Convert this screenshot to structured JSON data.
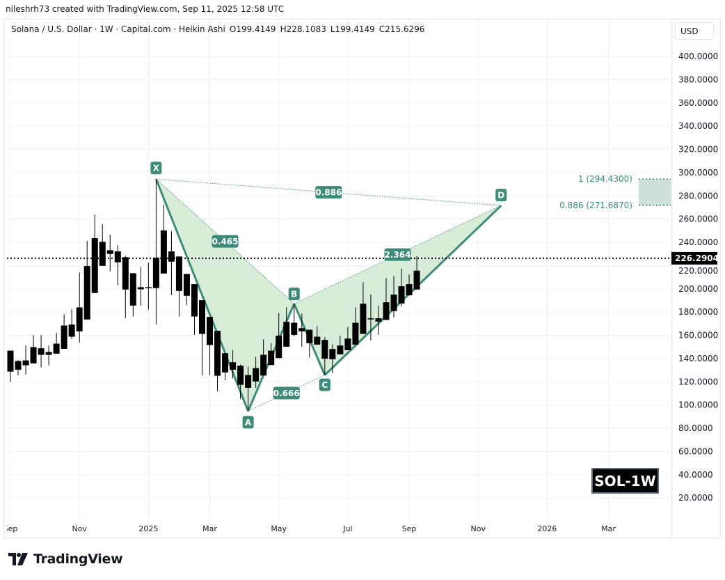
{
  "credit": "nileshrh73 created with TradingView.com, Sep 11, 2025 12:58 UTC",
  "legend": {
    "symbol": "Solana / U.S. Dollar · 1W · Capital.com · Heikin Ashi",
    "open": "O199.4149",
    "high": "H228.1083",
    "low": "L199.4149",
    "close": "C215.6296"
  },
  "currency_button": "USD",
  "watermark_label": "SOL-1W",
  "brand": "TradingView",
  "colors": {
    "pattern_line": "#3d8a78",
    "pattern_fill": "#d6ecd6",
    "candle": "#000000",
    "prz_fill": "#cde0dc",
    "label_bg": "#3d8a78"
  },
  "chart_data": {
    "type": "candlestick",
    "style": "Heikin Ashi",
    "ylim": [
      0,
      420
    ],
    "y_ticks": [
      "400.0000",
      "380.0000",
      "360.0000",
      "340.0000",
      "320.0000",
      "300.0000",
      "280.0000",
      "260.0000",
      "240.0000",
      "220.0000",
      "200.0000",
      "180.0000",
      "160.0000",
      "140.0000",
      "120.0000",
      "100.0000",
      "80.0000",
      "60.0000",
      "40.0000",
      "20.0000"
    ],
    "x_ticks": [
      {
        "label": "Sep",
        "date": "2024-09-02"
      },
      {
        "label": "Nov",
        "date": "2024-11-04"
      },
      {
        "label": "2025",
        "date": "2025-01-06"
      },
      {
        "label": "Mar",
        "date": "2025-03-03"
      },
      {
        "label": "May",
        "date": "2025-05-05"
      },
      {
        "label": "Jul",
        "date": "2025-07-07"
      },
      {
        "label": "Sep",
        "date": "2025-09-01"
      },
      {
        "label": "Nov",
        "date": "2025-11-03"
      },
      {
        "label": "2026",
        "date": "2026-01-05"
      },
      {
        "label": "Mar",
        "date": "2026-03-02"
      }
    ],
    "grid": true,
    "current_price": {
      "value": 226.2904,
      "label": "226.2904"
    },
    "candles_columns": [
      "date",
      "open",
      "high",
      "low",
      "close"
    ],
    "candles": [
      [
        "2024-09-02",
        146.8,
        146.8,
        119.8,
        128.8
      ],
      [
        "2024-09-09",
        130.4,
        138.8,
        125.8,
        137.8
      ],
      [
        "2024-09-16",
        134.2,
        151.2,
        126.4,
        138.4
      ],
      [
        "2024-09-23",
        135.8,
        160.2,
        135.8,
        149.8
      ],
      [
        "2024-09-30",
        143.2,
        160.2,
        132.4,
        148.8
      ],
      [
        "2024-10-07",
        143.2,
        151.2,
        134.2,
        145.6
      ],
      [
        "2024-10-14",
        144.2,
        162.2,
        144.2,
        152.8
      ],
      [
        "2024-10-21",
        148.4,
        178.2,
        148.4,
        168.4
      ],
      [
        "2024-10-28",
        158.8,
        182.4,
        156.8,
        169.2
      ],
      [
        "2024-11-04",
        163.4,
        214.2,
        153.8,
        184.0
      ],
      [
        "2024-11-11",
        173.6,
        241.2,
        173.6,
        219.6
      ],
      [
        "2024-11-18",
        196.4,
        264.0,
        196.4,
        243.6
      ],
      [
        "2024-11-25",
        219.8,
        255.6,
        219.8,
        240.4
      ],
      [
        "2024-12-02",
        233.2,
        246.6,
        215.0,
        230.0
      ],
      [
        "2024-12-09",
        232.2,
        237.6,
        203.0,
        222.8
      ],
      [
        "2024-12-16",
        227.2,
        228.4,
        174.8,
        199.4
      ],
      [
        "2024-12-23",
        213.4,
        213.4,
        176.2,
        185.6
      ],
      [
        "2024-12-30",
        199.6,
        218.8,
        185.6,
        201.4
      ],
      [
        "2025-01-06",
        201.0,
        222.6,
        182.0,
        201.4
      ],
      [
        "2025-01-13",
        200.6,
        294.4,
        169.4,
        226.8
      ],
      [
        "2025-01-20",
        213.2,
        272.4,
        213.2,
        250.2
      ],
      [
        "2025-01-27",
        232.2,
        249.8,
        194.6,
        223.4
      ],
      [
        "2025-02-03",
        227.8,
        227.8,
        176.2,
        198.2
      ],
      [
        "2025-02-10",
        212.8,
        212.8,
        186.2,
        194.0
      ],
      [
        "2025-02-17",
        204.0,
        204.0,
        160.4,
        176.2
      ],
      [
        "2025-02-24",
        190.2,
        190.2,
        125.4,
        161.2
      ],
      [
        "2025-03-03",
        175.8,
        175.8,
        125.8,
        151.6
      ],
      [
        "2025-03-10",
        163.8,
        163.8,
        112.0,
        125.2
      ],
      [
        "2025-03-17",
        144.6,
        144.6,
        121.4,
        128.0
      ],
      [
        "2025-03-24",
        136.8,
        147.2,
        123.0,
        130.4
      ],
      [
        "2025-03-31",
        133.8,
        134.8,
        105.2,
        117.4
      ],
      [
        "2025-04-07",
        125.8,
        133.2,
        94.8,
        114.8
      ],
      [
        "2025-04-14",
        120.2,
        141.4,
        114.8,
        131.8
      ],
      [
        "2025-04-21",
        125.4,
        156.6,
        125.4,
        143.2
      ],
      [
        "2025-04-28",
        134.4,
        153.4,
        134.4,
        146.8
      ],
      [
        "2025-05-05",
        140.4,
        179.2,
        140.4,
        159.6
      ],
      [
        "2025-05-12",
        150.2,
        184.2,
        150.2,
        171.6
      ],
      [
        "2025-05-19",
        170.8,
        187.2,
        159.2,
        160.4
      ],
      [
        "2025-05-26",
        166.2,
        178.8,
        150.2,
        163.4
      ],
      [
        "2025-06-02",
        164.8,
        164.8,
        140.8,
        153.2
      ],
      [
        "2025-06-09",
        152.0,
        167.8,
        152.0,
        158.8
      ],
      [
        "2025-06-16",
        156.0,
        158.4,
        125.8,
        139.8
      ],
      [
        "2025-06-23",
        139.4,
        152.2,
        127.4,
        148.2
      ],
      [
        "2025-06-30",
        143.6,
        159.6,
        143.6,
        151.2
      ],
      [
        "2025-07-07",
        147.2,
        167.2,
        147.2,
        157.2
      ],
      [
        "2025-07-14",
        152.0,
        184.2,
        152.0,
        170.8
      ],
      [
        "2025-07-21",
        161.2,
        205.8,
        161.2,
        187.2
      ],
      [
        "2025-07-28",
        174.2,
        195.2,
        155.6,
        174.6
      ],
      [
        "2025-08-04",
        171.8,
        185.4,
        160.4,
        174.6
      ],
      [
        "2025-08-11",
        173.2,
        209.4,
        173.2,
        188.4
      ],
      [
        "2025-08-18",
        180.8,
        211.2,
        175.4,
        195.0
      ],
      [
        "2025-08-25",
        187.4,
        217.4,
        184.8,
        202.2
      ],
      [
        "2025-09-01",
        194.4,
        212.4,
        194.4,
        204.0
      ],
      [
        "2025-09-08",
        199.4149,
        228.1083,
        199.4149,
        215.6296
      ]
    ],
    "harmonic_pattern": {
      "points": [
        {
          "label": "X",
          "date": "2025-01-13",
          "price": 294.43
        },
        {
          "label": "A",
          "date": "2025-04-07",
          "price": 94.8
        },
        {
          "label": "B",
          "date": "2025-05-19",
          "price": 187.2
        },
        {
          "label": "C",
          "date": "2025-06-16",
          "price": 125.8
        },
        {
          "label": "D",
          "date": "2025-11-24",
          "price": 271.687
        }
      ],
      "ratios": [
        {
          "from": "X",
          "to": "B",
          "label": "0.465"
        },
        {
          "from": "A",
          "to": "C",
          "label": "0.666"
        },
        {
          "from": "B",
          "to": "D",
          "label": "2.364"
        },
        {
          "from": "X",
          "to": "D",
          "label": "0.886"
        }
      ]
    },
    "prz": {
      "upper": {
        "value": 294.43,
        "label": "1 (294.4300)"
      },
      "lower": {
        "value": 271.687,
        "label": "0.886 (271.6870)"
      }
    }
  }
}
